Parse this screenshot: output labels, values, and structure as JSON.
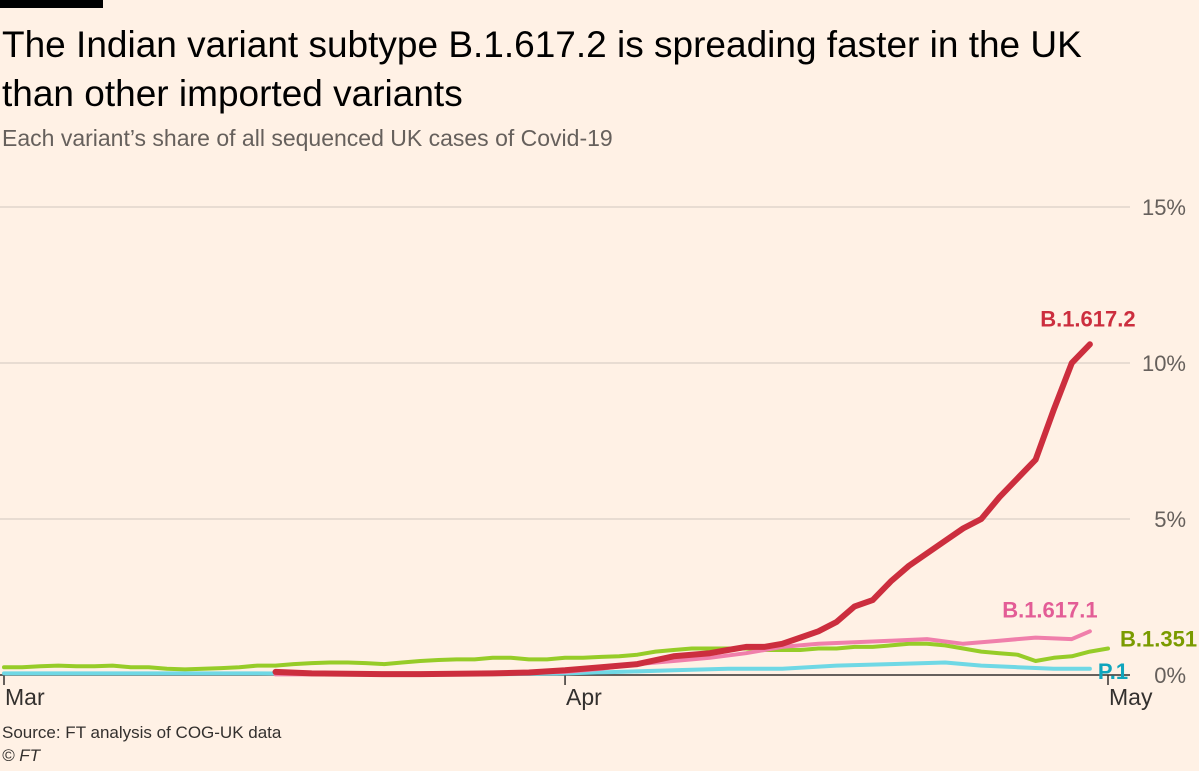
{
  "title": "The Indian variant subtype B.1.617.2 is spreading faster in the UK than other imported variants",
  "subtitle": "Each variant’s share of all sequenced UK cases of Covid-19",
  "source": "Source: FT analysis of COG-UK data",
  "credit": "© FT",
  "chart_data": {
    "type": "line",
    "x_start_date": "2021-03-01",
    "y_unit": "%",
    "ylim": [
      0,
      15
    ],
    "y_ticks": [
      {
        "value": 0,
        "label": "0%"
      },
      {
        "value": 5,
        "label": "5%"
      },
      {
        "value": 10,
        "label": "10%"
      },
      {
        "value": 15,
        "label": "15%"
      }
    ],
    "x_ticks": [
      {
        "date": "2021-03-01",
        "label": "Mar"
      },
      {
        "date": "2021-04-01",
        "label": "Apr"
      },
      {
        "date": "2021-05-01",
        "label": "May"
      }
    ],
    "xlim": [
      "2021-03-01",
      "2021-05-01"
    ],
    "grid": true,
    "series": [
      {
        "name": "B.1.351",
        "color": "#96cc28",
        "label_color": "#7a9b00",
        "points": [
          [
            "2021-03-01",
            0.25
          ],
          [
            "2021-03-02",
            0.25
          ],
          [
            "2021-03-03",
            0.28
          ],
          [
            "2021-03-04",
            0.3
          ],
          [
            "2021-03-05",
            0.28
          ],
          [
            "2021-03-06",
            0.28
          ],
          [
            "2021-03-07",
            0.3
          ],
          [
            "2021-03-08",
            0.25
          ],
          [
            "2021-03-09",
            0.25
          ],
          [
            "2021-03-10",
            0.2
          ],
          [
            "2021-03-11",
            0.18
          ],
          [
            "2021-03-12",
            0.2
          ],
          [
            "2021-03-13",
            0.22
          ],
          [
            "2021-03-14",
            0.25
          ],
          [
            "2021-03-15",
            0.3
          ],
          [
            "2021-03-16",
            0.3
          ],
          [
            "2021-03-17",
            0.35
          ],
          [
            "2021-03-18",
            0.38
          ],
          [
            "2021-03-19",
            0.4
          ],
          [
            "2021-03-20",
            0.4
          ],
          [
            "2021-03-21",
            0.38
          ],
          [
            "2021-03-22",
            0.35
          ],
          [
            "2021-03-23",
            0.4
          ],
          [
            "2021-03-24",
            0.45
          ],
          [
            "2021-03-25",
            0.48
          ],
          [
            "2021-03-26",
            0.5
          ],
          [
            "2021-03-27",
            0.5
          ],
          [
            "2021-03-28",
            0.55
          ],
          [
            "2021-03-29",
            0.55
          ],
          [
            "2021-03-30",
            0.5
          ],
          [
            "2021-03-31",
            0.5
          ],
          [
            "2021-04-01",
            0.55
          ],
          [
            "2021-04-02",
            0.55
          ],
          [
            "2021-04-03",
            0.58
          ],
          [
            "2021-04-04",
            0.6
          ],
          [
            "2021-04-05",
            0.65
          ],
          [
            "2021-04-06",
            0.75
          ],
          [
            "2021-04-07",
            0.8
          ],
          [
            "2021-04-08",
            0.85
          ],
          [
            "2021-04-09",
            0.85
          ],
          [
            "2021-04-10",
            0.85
          ],
          [
            "2021-04-11",
            0.85
          ],
          [
            "2021-04-12",
            0.8
          ],
          [
            "2021-04-13",
            0.8
          ],
          [
            "2021-04-14",
            0.8
          ],
          [
            "2021-04-15",
            0.85
          ],
          [
            "2021-04-16",
            0.85
          ],
          [
            "2021-04-17",
            0.9
          ],
          [
            "2021-04-18",
            0.9
          ],
          [
            "2021-04-19",
            0.95
          ],
          [
            "2021-04-20",
            1.0
          ],
          [
            "2021-04-21",
            1.0
          ],
          [
            "2021-04-22",
            0.95
          ],
          [
            "2021-04-23",
            0.85
          ],
          [
            "2021-04-24",
            0.75
          ],
          [
            "2021-04-25",
            0.7
          ],
          [
            "2021-04-26",
            0.65
          ],
          [
            "2021-04-27",
            0.45
          ],
          [
            "2021-04-28",
            0.55
          ],
          [
            "2021-04-29",
            0.6
          ],
          [
            "2021-04-30",
            0.75
          ],
          [
            "2021-05-01",
            0.85
          ]
        ]
      },
      {
        "name": "P.1",
        "color": "#6fd8e5",
        "label_color": "#0fa5bd",
        "points": [
          [
            "2021-03-01",
            0.05
          ],
          [
            "2021-03-08",
            0.05
          ],
          [
            "2021-03-15",
            0.05
          ],
          [
            "2021-03-22",
            0.03
          ],
          [
            "2021-03-29",
            0.03
          ],
          [
            "2021-04-01",
            0.05
          ],
          [
            "2021-04-04",
            0.1
          ],
          [
            "2021-04-07",
            0.15
          ],
          [
            "2021-04-10",
            0.2
          ],
          [
            "2021-04-13",
            0.2
          ],
          [
            "2021-04-16",
            0.3
          ],
          [
            "2021-04-19",
            0.35
          ],
          [
            "2021-04-22",
            0.4
          ],
          [
            "2021-04-24",
            0.3
          ],
          [
            "2021-04-26",
            0.25
          ],
          [
            "2021-04-28",
            0.2
          ],
          [
            "2021-04-30",
            0.2
          ]
        ]
      },
      {
        "name": "B.1.617.1",
        "color": "#f07fab",
        "label_color": "#e35d96",
        "points": [
          [
            "2021-03-16",
            0.02
          ],
          [
            "2021-03-20",
            0.02
          ],
          [
            "2021-03-24",
            0.03
          ],
          [
            "2021-03-28",
            0.05
          ],
          [
            "2021-04-01",
            0.1
          ],
          [
            "2021-04-03",
            0.2
          ],
          [
            "2021-04-05",
            0.35
          ],
          [
            "2021-04-07",
            0.45
          ],
          [
            "2021-04-09",
            0.55
          ],
          [
            "2021-04-11",
            0.7
          ],
          [
            "2021-04-13",
            0.9
          ],
          [
            "2021-04-15",
            1.0
          ],
          [
            "2021-04-17",
            1.05
          ],
          [
            "2021-04-19",
            1.1
          ],
          [
            "2021-04-21",
            1.15
          ],
          [
            "2021-04-23",
            1.0
          ],
          [
            "2021-04-25",
            1.1
          ],
          [
            "2021-04-27",
            1.2
          ],
          [
            "2021-04-29",
            1.15
          ],
          [
            "2021-04-30",
            1.4
          ]
        ]
      },
      {
        "name": "B.1.617.2",
        "color": "#cc2e3e",
        "label_color": "#cc2e3e",
        "points": [
          [
            "2021-03-16",
            0.1
          ],
          [
            "2021-03-18",
            0.05
          ],
          [
            "2021-03-20",
            0.04
          ],
          [
            "2021-03-22",
            0.03
          ],
          [
            "2021-03-24",
            0.03
          ],
          [
            "2021-03-26",
            0.04
          ],
          [
            "2021-03-28",
            0.05
          ],
          [
            "2021-03-30",
            0.08
          ],
          [
            "2021-04-01",
            0.15
          ],
          [
            "2021-04-03",
            0.25
          ],
          [
            "2021-04-05",
            0.35
          ],
          [
            "2021-04-07",
            0.6
          ],
          [
            "2021-04-09",
            0.7
          ],
          [
            "2021-04-10",
            0.8
          ],
          [
            "2021-04-11",
            0.9
          ],
          [
            "2021-04-12",
            0.9
          ],
          [
            "2021-04-13",
            1.0
          ],
          [
            "2021-04-14",
            1.2
          ],
          [
            "2021-04-15",
            1.4
          ],
          [
            "2021-04-16",
            1.7
          ],
          [
            "2021-04-17",
            2.2
          ],
          [
            "2021-04-18",
            2.4
          ],
          [
            "2021-04-19",
            3.0
          ],
          [
            "2021-04-20",
            3.5
          ],
          [
            "2021-04-21",
            3.9
          ],
          [
            "2021-04-22",
            4.3
          ],
          [
            "2021-04-23",
            4.7
          ],
          [
            "2021-04-24",
            5.0
          ],
          [
            "2021-04-25",
            5.7
          ],
          [
            "2021-04-26",
            6.3
          ],
          [
            "2021-04-27",
            6.9
          ],
          [
            "2021-04-28",
            8.5
          ],
          [
            "2021-04-29",
            10.0
          ],
          [
            "2021-04-30",
            10.6
          ]
        ]
      }
    ]
  }
}
